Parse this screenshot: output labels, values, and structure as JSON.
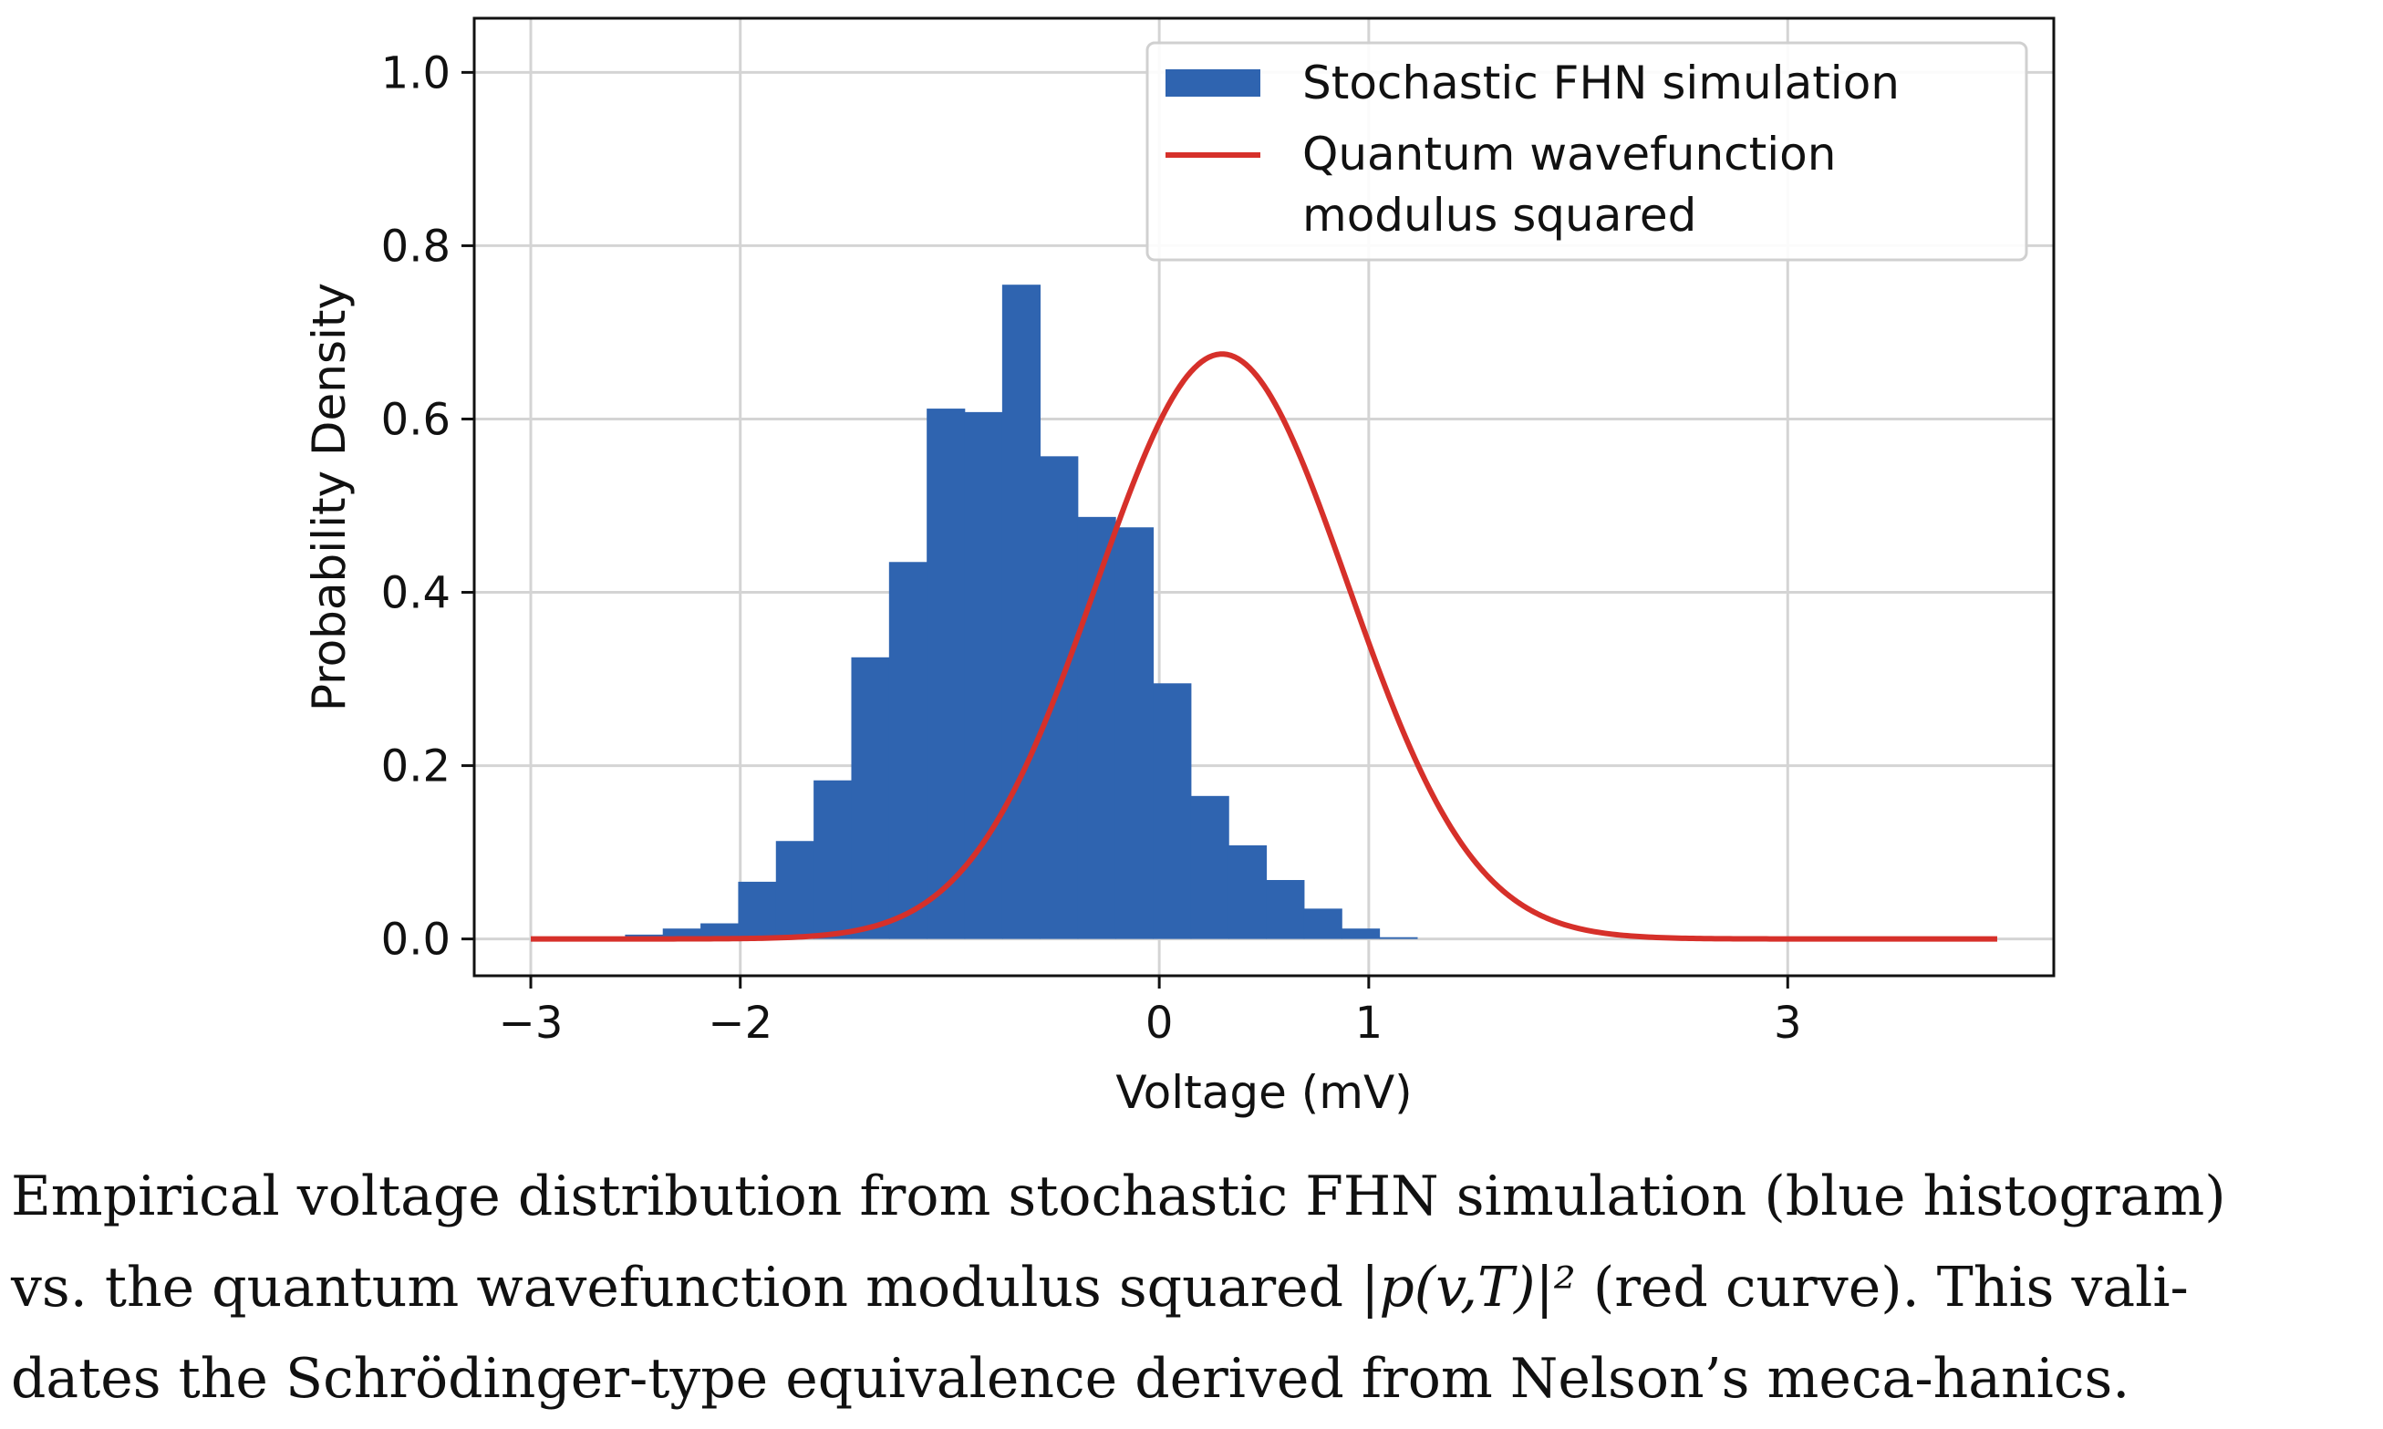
{
  "chart_data": {
    "type": "bar",
    "title": "",
    "xlabel": "Voltage (mV)",
    "ylabel": "Probability Density",
    "xlim": [
      -3.27,
      4.27
    ],
    "ylim": [
      -0.0425,
      1.0625
    ],
    "xticks": [
      -3,
      -2,
      0,
      1,
      3
    ],
    "xtick_labels": [
      "−3",
      "−2",
      "0",
      "1",
      "3"
    ],
    "yticks": [
      0.0,
      0.2,
      0.4,
      0.6,
      0.8,
      1.0
    ],
    "ytick_labels": [
      "0.0",
      "0.2",
      "0.4",
      "0.6",
      "0.8",
      "1.0"
    ],
    "grid": true,
    "legend_position": "top-right",
    "series": [
      {
        "name": "Stochastic FHN simulation",
        "type": "histogram",
        "color": "#2f64b0",
        "bin_edges": [
          -2.55,
          -2.37,
          -2.19,
          -2.01,
          -1.83,
          -1.65,
          -1.47,
          -1.29,
          -1.11,
          -0.93,
          -0.75,
          -0.57,
          -0.39,
          -0.21,
          -0.03,
          0.15,
          0.33,
          0.51,
          0.69,
          0.87,
          1.05,
          1.23,
          1.41,
          1.59,
          1.77,
          1.95,
          2.13
        ],
        "values": [
          0.005,
          0.012,
          0.018,
          0.066,
          0.113,
          0.183,
          0.325,
          0.435,
          0.612,
          0.608,
          0.755,
          0.557,
          0.487,
          0.475,
          0.295,
          0.165,
          0.108,
          0.068,
          0.035,
          0.012,
          0.002,
          0.0,
          0.0,
          0.0,
          0.0,
          0.0
        ]
      },
      {
        "name": "Quantum wavefunction\nmodulus squared",
        "type": "line",
        "color": "#d6302a",
        "curve": {
          "kind": "gaussian",
          "amplitude": 0.675,
          "mean": 0.3,
          "sigma": 0.6,
          "x_range": [
            -3.0,
            4.0
          ]
        }
      }
    ]
  },
  "legend": {
    "entries": [
      {
        "lines": [
          "Stochastic FHN simulation"
        ]
      },
      {
        "lines": [
          "Quantum wavefunction",
          "modulus squared"
        ]
      }
    ]
  },
  "caption": {
    "line1": "Empirical  voltage distribution   from stochastic FHN simulation (blue histogram)",
    "line2_pre": "vs. the quantum wavefunction modulus squared ",
    "math": "|p(v,T)|²",
    "line2_post": " (red curve). This vali-",
    "line3": "dates the Schrödinger-type equivalence derived from Nelson’s meca-hanics."
  }
}
